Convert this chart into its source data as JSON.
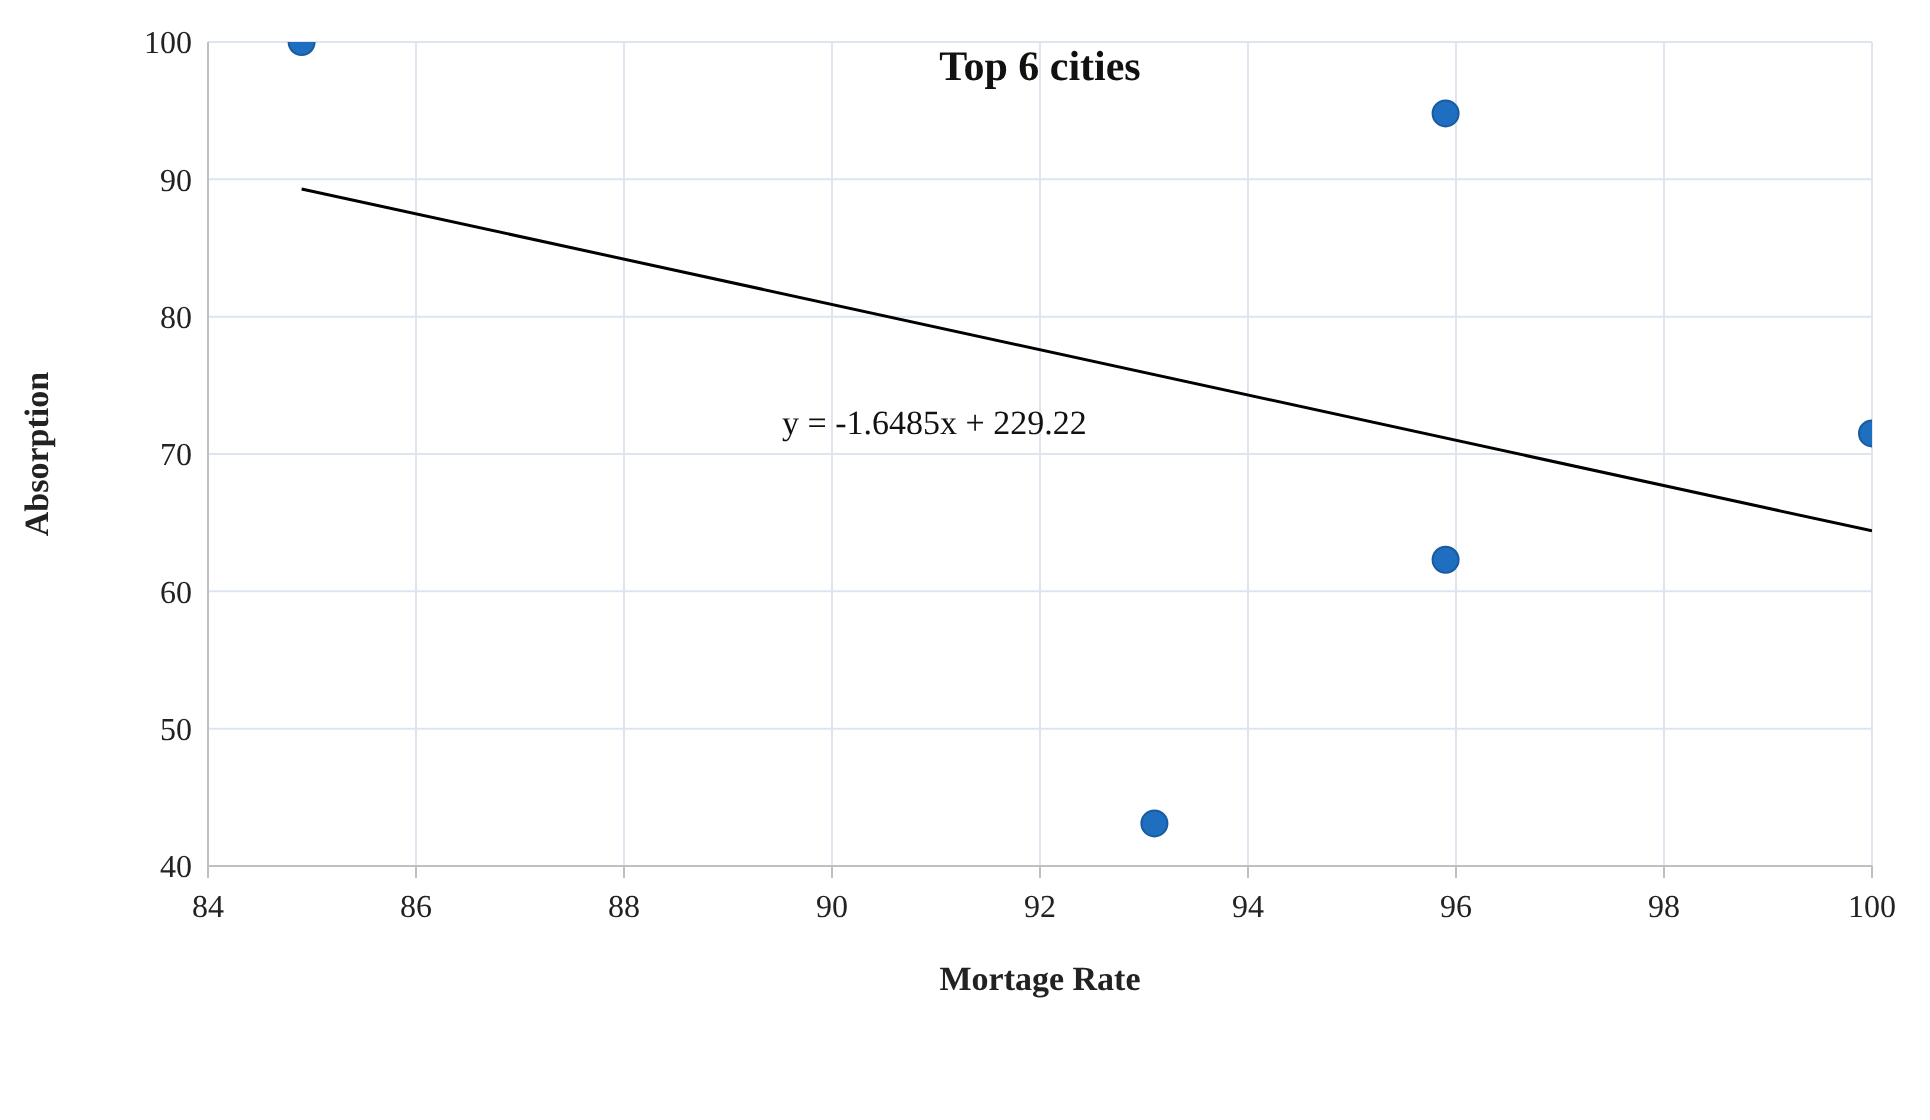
{
  "chart_data": {
    "type": "scatter",
    "title": "Top 6 cities",
    "xlabel": "Mortage Rate",
    "ylabel": "Absorption",
    "xlim": [
      84,
      100
    ],
    "xticks": [
      84,
      86,
      88,
      90,
      92,
      94,
      96,
      98,
      100
    ],
    "ylim": [
      40,
      100
    ],
    "yticks": [
      40,
      50,
      60,
      70,
      80,
      90,
      100
    ],
    "grid": true,
    "legend": false,
    "marker": "circle",
    "annotations": [
      "y = -1.6485x + 229.22"
    ],
    "series": [
      {
        "type": "scatter",
        "color": "#1f6fc0",
        "x": [
          84.9,
          95.9,
          100,
          95.9,
          93.1
        ],
        "values": [
          100,
          94.8,
          71.5,
          62.3,
          43.1
        ]
      },
      {
        "type": "line",
        "color": "#000000",
        "line_style": "solid",
        "marker": "none",
        "x": [
          84.9,
          100
        ],
        "values": [
          89.3,
          64.4
        ]
      }
    ]
  }
}
